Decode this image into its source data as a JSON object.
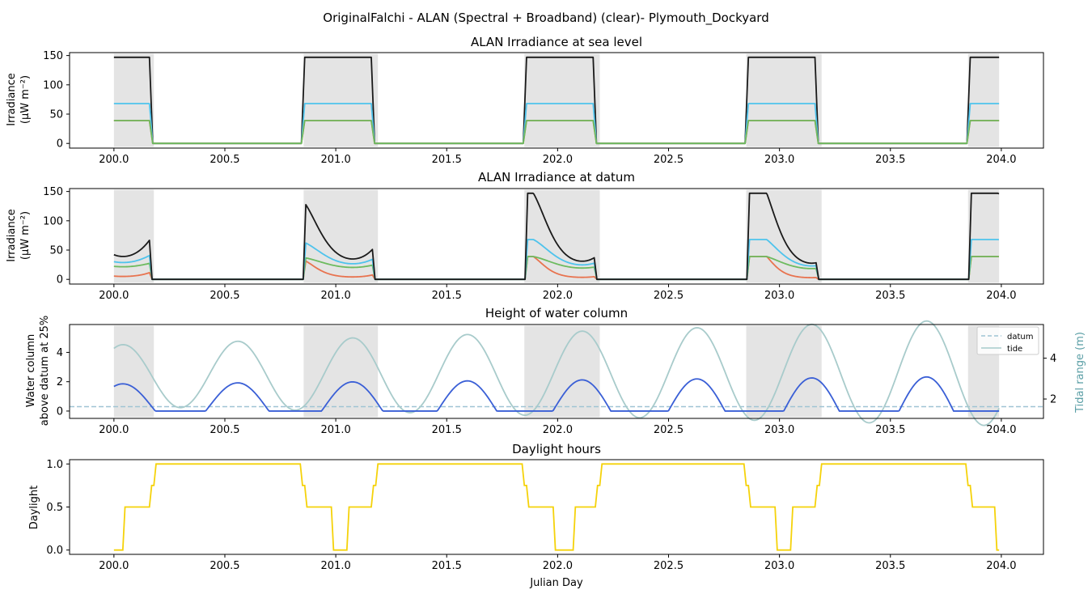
{
  "suptitle": "OriginalFalchi - ALAN (Spectral + Broadband) (clear)- Plymouth_Dockyard",
  "colors": {
    "night_shade": "#e4e4e4",
    "broadband": "#1a1a1a",
    "blue": "#4ec3ec",
    "green": "#6dbb5f",
    "red": "#e8734f",
    "tide_main": "#3a5fd6",
    "tide_range": "#a8cbcb",
    "datum": "#9fc4d4",
    "daylight": "#f5d20a",
    "right_axis": "#5b9fa6"
  },
  "chart_data": [
    {
      "type": "line",
      "title": "ALAN Irradiance at sea level",
      "ylabel_line1": "Irradiance",
      "ylabel_line2": "(μW m⁻²)",
      "xlim": [
        199.8,
        204.19
      ],
      "ylim": [
        -8,
        155
      ],
      "xticks": [
        "200.0",
        "200.5",
        "201.0",
        "201.5",
        "202.0",
        "202.5",
        "203.0",
        "203.5",
        "204.0"
      ],
      "yticks": [
        "0",
        "50",
        "100",
        "150"
      ],
      "night_periods": [
        [
          200.0,
          200.18
        ],
        [
          200.855,
          201.19
        ],
        [
          201.85,
          202.19
        ],
        [
          202.85,
          203.19
        ],
        [
          203.85,
          203.99
        ]
      ],
      "night_series_values": [
        {
          "color_key": "broadband",
          "value": 147
        },
        {
          "color_key": "blue",
          "value": 68
        },
        {
          "color_key": "red",
          "value": 39
        },
        {
          "color_key": "green",
          "value": 39
        }
      ],
      "lit_intervals": [
        [
          200.0,
          200.16
        ],
        [
          200.86,
          201.16
        ],
        [
          201.86,
          202.16
        ],
        [
          202.86,
          203.16
        ],
        [
          203.86,
          203.99
        ]
      ]
    },
    {
      "type": "line",
      "title": "ALAN Irradiance at datum",
      "ylabel_line1": "Irradiance",
      "ylabel_line2": "(μW m⁻²)",
      "xlim": [
        199.8,
        204.19
      ],
      "ylim": [
        -8,
        155
      ],
      "xticks": [
        "200.0",
        "200.5",
        "201.0",
        "201.5",
        "202.0",
        "202.5",
        "203.0",
        "203.5",
        "204.0"
      ],
      "yticks": [
        "0",
        "50",
        "100",
        "150"
      ],
      "night_periods": [
        [
          200.0,
          200.18
        ],
        [
          200.855,
          201.19
        ],
        [
          201.85,
          202.19
        ],
        [
          202.85,
          203.19
        ],
        [
          203.85,
          203.99
        ]
      ],
      "note_values": {
        "peak_broadband": 147,
        "peak_blue": 68,
        "peak_green": 39,
        "peak_red": 39
      }
    },
    {
      "type": "line",
      "title": "Height of water column",
      "ylabel_line1": "Water column",
      "ylabel_line2": "above datum at 25%",
      "right_ylabel": "Tidal range (m)",
      "xlim": [
        199.8,
        204.19
      ],
      "ylim": [
        -0.5,
        5.9
      ],
      "right_ylim": [
        1.05,
        5.65
      ],
      "xticks": [
        "200.0",
        "200.5",
        "201.0",
        "201.5",
        "202.0",
        "202.5",
        "203.0",
        "203.5",
        "204.0"
      ],
      "yticks": [
        "0",
        "2",
        "4"
      ],
      "right_yticks": [
        "2",
        "4"
      ],
      "datum_level": 0.3,
      "legend": [
        "datum",
        "tide"
      ],
      "legend_position": "top-right",
      "night_periods": [
        [
          200.0,
          200.18
        ],
        [
          200.855,
          201.19
        ],
        [
          201.85,
          202.19
        ],
        [
          202.85,
          203.19
        ],
        [
          203.85,
          203.99
        ]
      ]
    },
    {
      "type": "line",
      "title": "Daylight hours",
      "ylabel": "Daylight",
      "xlabel": "Julian Day",
      "xlim": [
        199.8,
        204.19
      ],
      "ylim": [
        -0.05,
        1.05
      ],
      "xticks": [
        "200.0",
        "200.5",
        "201.0",
        "201.5",
        "202.0",
        "202.5",
        "203.0",
        "203.5",
        "204.0"
      ],
      "yticks": [
        "0.0",
        "0.5",
        "1.0"
      ],
      "points": [
        [
          200.0,
          0
        ],
        [
          200.04,
          0
        ],
        [
          200.05,
          0.5
        ],
        [
          200.16,
          0.5
        ],
        [
          200.17,
          0.75
        ],
        [
          200.18,
          0.75
        ],
        [
          200.19,
          1.0
        ],
        [
          200.84,
          1.0
        ],
        [
          200.85,
          0.75
        ],
        [
          200.86,
          0.75
        ],
        [
          200.87,
          0.5
        ],
        [
          200.98,
          0.5
        ],
        [
          200.99,
          0
        ],
        [
          201.05,
          0
        ],
        [
          201.06,
          0.5
        ],
        [
          201.16,
          0.5
        ],
        [
          201.17,
          0.75
        ],
        [
          201.18,
          0.75
        ],
        [
          201.19,
          1.0
        ],
        [
          201.84,
          1.0
        ],
        [
          201.85,
          0.75
        ],
        [
          201.86,
          0.75
        ],
        [
          201.87,
          0.5
        ],
        [
          201.98,
          0.5
        ],
        [
          201.99,
          0
        ],
        [
          202.07,
          0
        ],
        [
          202.08,
          0.5
        ],
        [
          202.17,
          0.5
        ],
        [
          202.18,
          0.75
        ],
        [
          202.19,
          0.75
        ],
        [
          202.2,
          1.0
        ],
        [
          202.84,
          1.0
        ],
        [
          202.85,
          0.75
        ],
        [
          202.86,
          0.75
        ],
        [
          202.87,
          0.5
        ],
        [
          202.98,
          0.5
        ],
        [
          202.99,
          0
        ],
        [
          203.05,
          0
        ],
        [
          203.06,
          0.5
        ],
        [
          203.16,
          0.5
        ],
        [
          203.17,
          0.75
        ],
        [
          203.18,
          0.75
        ],
        [
          203.19,
          1.0
        ],
        [
          203.84,
          1.0
        ],
        [
          203.85,
          0.75
        ],
        [
          203.86,
          0.75
        ],
        [
          203.87,
          0.5
        ],
        [
          203.97,
          0.5
        ],
        [
          203.98,
          0
        ],
        [
          203.99,
          0
        ]
      ]
    }
  ]
}
